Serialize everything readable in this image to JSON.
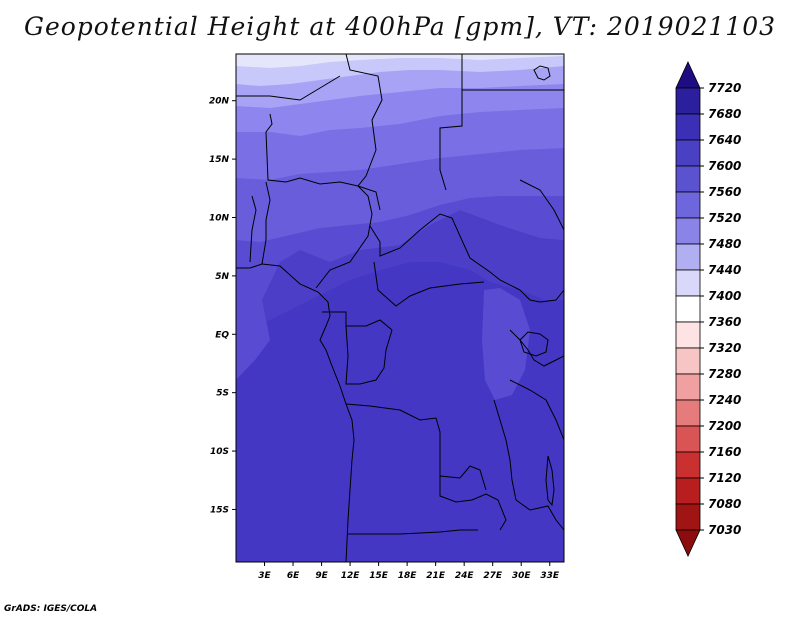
{
  "title": "Geopotential Height at 400hPa [gpm], VT: 2019021103",
  "credit": "GrADS: IGES/COLA",
  "map": {
    "lon_range": [
      0,
      34.5
    ],
    "lat_range": [
      -19.5,
      24
    ],
    "lon_ticks": [
      "3E",
      "6E",
      "9E",
      "12E",
      "15E",
      "18E",
      "21E",
      "24E",
      "27E",
      "30E",
      "33E"
    ],
    "lat_ticks": [
      "20N",
      "15N",
      "10N",
      "5N",
      "EQ",
      "5S",
      "10S",
      "15S"
    ],
    "field_colors": [
      "#e6e6fa",
      "#c8c8fa",
      "#a9a3f5",
      "#8e85ee",
      "#7a6fe4",
      "#6a5ddc",
      "#5a4cd2",
      "#4d3ec8",
      "#4337c3"
    ]
  },
  "colorbar": {
    "labels": [
      "7720",
      "7680",
      "7640",
      "7600",
      "7560",
      "7520",
      "7480",
      "7440",
      "7400",
      "7360",
      "7320",
      "7280",
      "7240",
      "7200",
      "7160",
      "7120",
      "7080",
      "7030"
    ],
    "colors": [
      "#1e0c82",
      "#2c1f9e",
      "#3a2fb5",
      "#4a40c4",
      "#5b52d0",
      "#6d66dc",
      "#8a84e8",
      "#b1aef2",
      "#dad8fa",
      "#ffffff",
      "#fde3e3",
      "#f8c5c5",
      "#f0a0a0",
      "#e57b7b",
      "#d95454",
      "#cb3030",
      "#b81e1e",
      "#a11414",
      "#8c0d0d"
    ]
  }
}
